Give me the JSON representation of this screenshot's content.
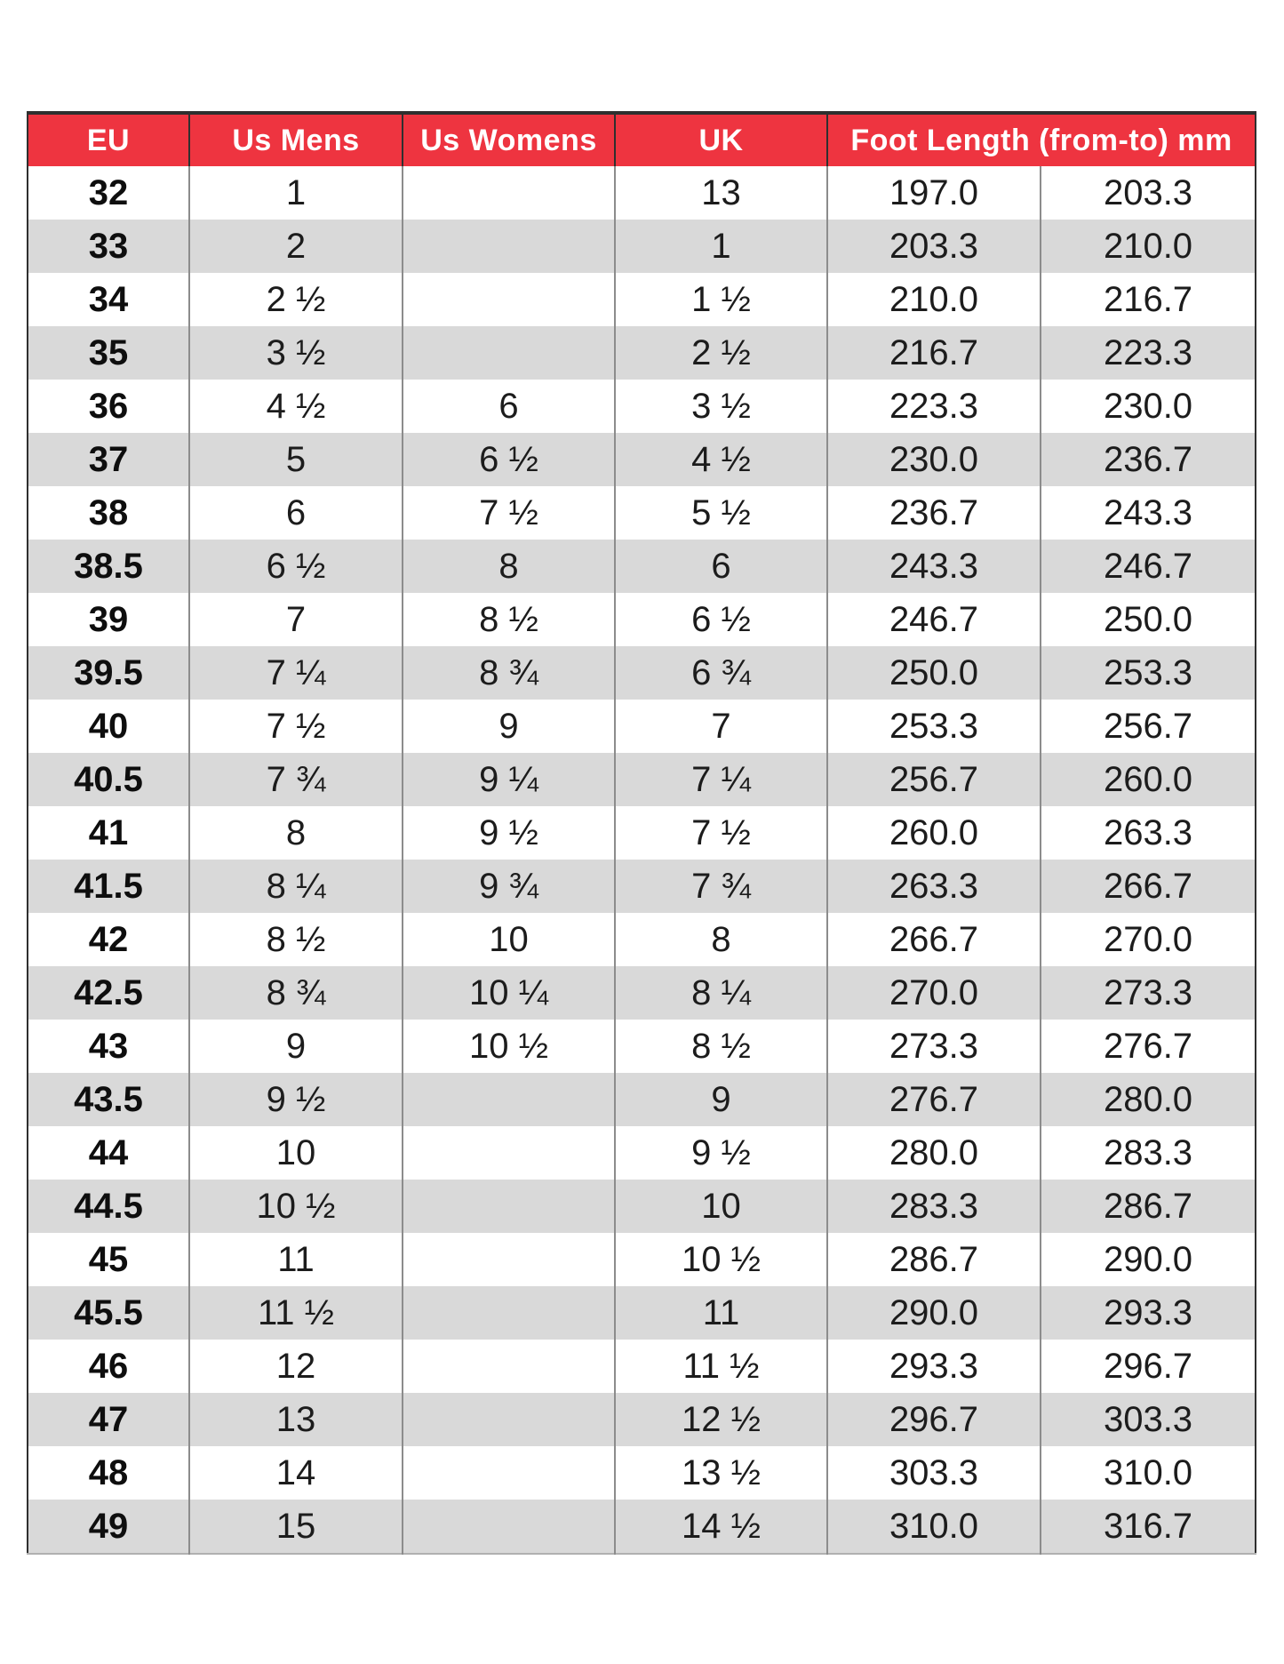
{
  "table": {
    "headers": [
      "EU",
      "Us Mens",
      "Us Womens",
      "UK",
      "Foot Length (from-to) mm"
    ],
    "column_keys": [
      "eu",
      "us-mens",
      "us-womens",
      "uk",
      "foot-length-from",
      "foot-length-to"
    ],
    "rows": [
      [
        "32",
        "1",
        "",
        "13",
        "197.0",
        "203.3"
      ],
      [
        "33",
        "2",
        "",
        "1",
        "203.3",
        "210.0"
      ],
      [
        "34",
        "2 ½",
        "",
        "1 ½",
        "210.0",
        "216.7"
      ],
      [
        "35",
        "3 ½",
        "",
        "2 ½",
        "216.7",
        "223.3"
      ],
      [
        "36",
        "4 ½",
        "6",
        "3 ½",
        "223.3",
        "230.0"
      ],
      [
        "37",
        "5",
        "6 ½",
        "4 ½",
        "230.0",
        "236.7"
      ],
      [
        "38",
        "6",
        "7 ½",
        "5 ½",
        "236.7",
        "243.3"
      ],
      [
        "38.5",
        "6 ½",
        "8",
        "6",
        "243.3",
        "246.7"
      ],
      [
        "39",
        "7",
        "8 ½",
        "6 ½",
        "246.7",
        "250.0"
      ],
      [
        "39.5",
        "7 ¼",
        "8 ¾",
        "6 ¾",
        "250.0",
        "253.3"
      ],
      [
        "40",
        "7 ½",
        "9",
        "7",
        "253.3",
        "256.7"
      ],
      [
        "40.5",
        "7 ¾",
        "9 ¼",
        "7 ¼",
        "256.7",
        "260.0"
      ],
      [
        "41",
        "8",
        "9 ½",
        "7 ½",
        "260.0",
        "263.3"
      ],
      [
        "41.5",
        "8 ¼",
        "9 ¾",
        "7 ¾",
        "263.3",
        "266.7"
      ],
      [
        "42",
        "8 ½",
        "10",
        "8",
        "266.7",
        "270.0"
      ],
      [
        "42.5",
        "8 ¾",
        "10 ¼",
        "8 ¼",
        "270.0",
        "273.3"
      ],
      [
        "43",
        "9",
        "10 ½",
        "8 ½",
        "273.3",
        "276.7"
      ],
      [
        "43.5",
        "9 ½",
        "",
        "9",
        "276.7",
        "280.0"
      ],
      [
        "44",
        "10",
        "",
        "9 ½",
        "280.0",
        "283.3"
      ],
      [
        "44.5",
        "10 ½",
        "",
        "10",
        "283.3",
        "286.7"
      ],
      [
        "45",
        "11",
        "",
        "10 ½",
        "286.7",
        "290.0"
      ],
      [
        "45.5",
        "11 ½",
        "",
        "11",
        "290.0",
        "293.3"
      ],
      [
        "46",
        "12",
        "",
        "11 ½",
        "293.3",
        "296.7"
      ],
      [
        "47",
        "13",
        "",
        "12 ½",
        "296.7",
        "303.3"
      ],
      [
        "48",
        "14",
        "",
        "13 ½",
        "303.3",
        "310.0"
      ],
      [
        "49",
        "15",
        "",
        "14 ½",
        "310.0",
        "316.7"
      ]
    ],
    "colors": {
      "header_bg": "#EE3440",
      "header_text": "#FFFFFF",
      "alt_row_bg": "#D9D9D9",
      "body_text": "#1C1C1C",
      "border_dark": "#2F2F2F",
      "divider": "#8C8C8C"
    }
  }
}
